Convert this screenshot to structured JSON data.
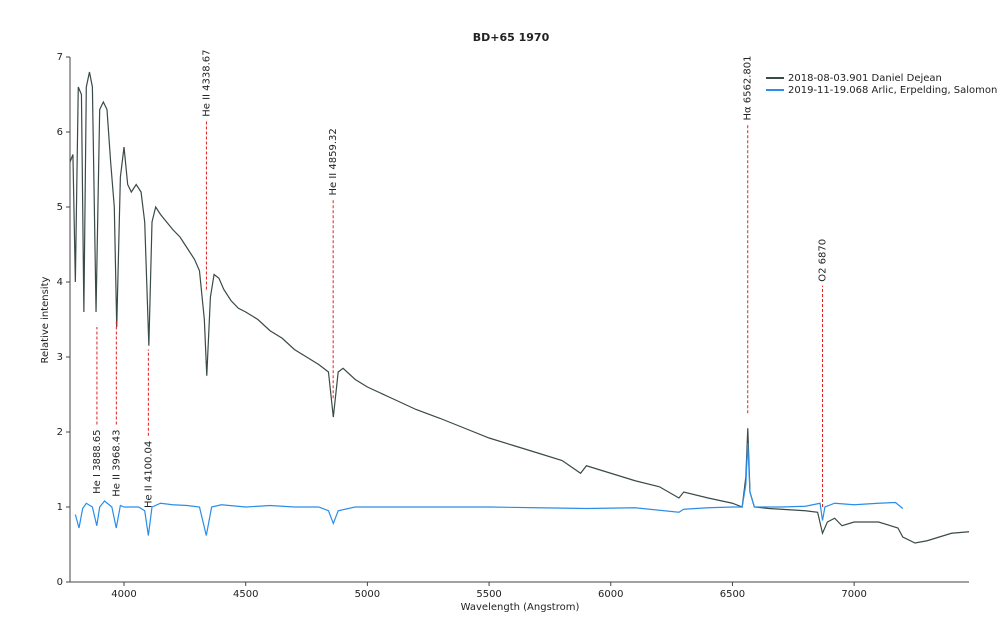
{
  "chart_data": {
    "type": "line",
    "title": "BD+65 1970",
    "x_label": "Wavelength (Angstrom)",
    "y_label": "Relative intensity",
    "xlim": [
      3778,
      7472
    ],
    "xticks": [
      4000,
      4500,
      5000,
      5500,
      6000,
      6500,
      7000
    ],
    "ylim": [
      0,
      7
    ],
    "yticks": [
      0,
      1,
      2,
      3,
      4,
      5,
      6,
      7
    ],
    "grid": false,
    "legend": "top-right",
    "series": [
      {
        "name": "2018-08-03.901  Daniel Dejean",
        "color": "#3a4a48",
        "x": [
          3778,
          3790,
          3800,
          3812,
          3825,
          3835,
          3845,
          3858,
          3870,
          3885,
          3900,
          3915,
          3930,
          3945,
          3960,
          3970,
          3985,
          4000,
          4015,
          4030,
          4050,
          4070,
          4085,
          4102,
          4115,
          4130,
          4150,
          4175,
          4200,
          4230,
          4260,
          4290,
          4310,
          4330,
          4340,
          4355,
          4370,
          4390,
          4410,
          4440,
          4470,
          4500,
          4550,
          4600,
          4650,
          4700,
          4750,
          4800,
          4840,
          4860,
          4880,
          4900,
          4950,
          5000,
          5100,
          5200,
          5300,
          5400,
          5500,
          5600,
          5700,
          5800,
          5876,
          5900,
          6000,
          6100,
          6200,
          6280,
          6300,
          6400,
          6500,
          6540,
          6555,
          6563,
          6572,
          6590,
          6650,
          6700,
          6800,
          6850,
          6870,
          6890,
          6920,
          6950,
          7000,
          7100,
          7180,
          7200,
          7250,
          7300,
          7350,
          7400,
          7472
        ],
        "values": [
          5.6,
          5.7,
          4.0,
          6.6,
          6.5,
          3.6,
          6.6,
          6.8,
          6.6,
          3.6,
          6.3,
          6.4,
          6.3,
          5.6,
          5.0,
          3.4,
          5.4,
          5.8,
          5.3,
          5.2,
          5.3,
          5.2,
          4.8,
          3.15,
          4.8,
          5.0,
          4.9,
          4.8,
          4.7,
          4.6,
          4.45,
          4.3,
          4.15,
          3.5,
          2.75,
          3.8,
          4.1,
          4.05,
          3.9,
          3.75,
          3.65,
          3.6,
          3.5,
          3.35,
          3.25,
          3.1,
          3.0,
          2.9,
          2.8,
          2.2,
          2.8,
          2.85,
          2.7,
          2.6,
          2.45,
          2.3,
          2.18,
          2.05,
          1.92,
          1.82,
          1.72,
          1.62,
          1.45,
          1.55,
          1.45,
          1.35,
          1.27,
          1.12,
          1.2,
          1.12,
          1.05,
          1.0,
          1.4,
          2.05,
          1.2,
          1.0,
          0.98,
          0.97,
          0.95,
          0.93,
          0.65,
          0.8,
          0.85,
          0.75,
          0.8,
          0.8,
          0.72,
          0.6,
          0.52,
          0.55,
          0.6,
          0.65,
          0.67
        ]
      },
      {
        "name": "2019-11-19.068  Arlic, Erpelding, Salomon",
        "color": "#2a8ee8",
        "x": [
          3800,
          3815,
          3830,
          3845,
          3870,
          3888,
          3900,
          3920,
          3950,
          3968,
          3985,
          4000,
          4030,
          4060,
          4085,
          4100,
          4115,
          4150,
          4200,
          4260,
          4310,
          4338,
          4360,
          4400,
          4500,
          4600,
          4700,
          4800,
          4840,
          4860,
          4880,
          4950,
          5100,
          5300,
          5500,
          5700,
          5900,
          6100,
          6280,
          6300,
          6400,
          6500,
          6540,
          6555,
          6563,
          6572,
          6590,
          6700,
          6800,
          6860,
          6870,
          6880,
          6920,
          7000,
          7100,
          7170,
          7200
        ],
        "values": [
          0.9,
          0.72,
          0.98,
          1.05,
          1.0,
          0.75,
          1.0,
          1.08,
          1.0,
          0.72,
          1.02,
          1.0,
          1.0,
          1.0,
          0.95,
          0.62,
          1.0,
          1.05,
          1.03,
          1.02,
          1.0,
          0.62,
          1.0,
          1.03,
          1.0,
          1.02,
          1.0,
          1.0,
          0.95,
          0.78,
          0.95,
          1.0,
          1.0,
          1.0,
          1.0,
          0.99,
          0.98,
          0.99,
          0.93,
          0.97,
          0.99,
          1.0,
          1.0,
          1.3,
          1.85,
          1.2,
          1.0,
          1.0,
          1.01,
          1.05,
          0.82,
          1.0,
          1.05,
          1.03,
          1.05,
          1.06,
          0.98
        ]
      }
    ],
    "annotations": [
      {
        "label": "He I 3888.65",
        "x": 3888.65,
        "y": [
          2.1,
          3.4
        ],
        "label_position": "bottom"
      },
      {
        "label": "He II 3968.43",
        "x": 3968.43,
        "y": [
          2.1,
          3.5
        ],
        "label_position": "bottom"
      },
      {
        "label": "He II 4100.04",
        "x": 4100.04,
        "y": [
          1.95,
          3.1
        ],
        "label_position": "bottom"
      },
      {
        "label": "He II 4338.67",
        "x": 4338.67,
        "y": [
          3.9,
          6.15
        ],
        "label_position": "top"
      },
      {
        "label": "He II 4859.32",
        "x": 4859.32,
        "y": [
          2.45,
          5.1
        ],
        "label_position": "top"
      },
      {
        "label": "Hα 6562.801",
        "x": 6562.801,
        "y": [
          2.25,
          6.1
        ],
        "label_position": "top"
      },
      {
        "label": "O2 6870",
        "x": 6870,
        "y": [
          1.0,
          3.95
        ],
        "label_position": "top"
      }
    ]
  }
}
